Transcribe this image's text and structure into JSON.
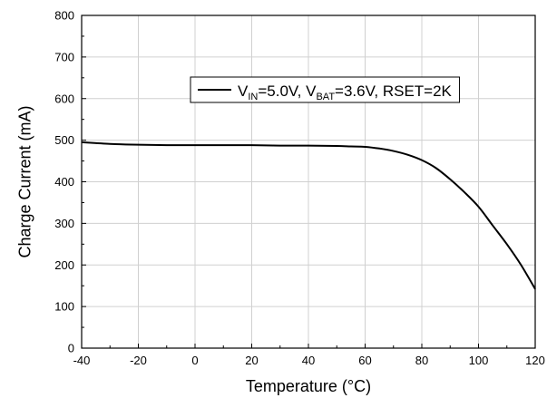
{
  "chart_data": {
    "type": "line",
    "xlabel": "Temperature (°C)",
    "ylabel": "Charge Current (mA)",
    "xlim": [
      -40,
      120
    ],
    "ylim": [
      0,
      800
    ],
    "xticks": [
      -40,
      -20,
      0,
      20,
      40,
      60,
      80,
      100,
      120
    ],
    "yticks": [
      0,
      100,
      200,
      300,
      400,
      500,
      600,
      700,
      800
    ],
    "grid": true,
    "legend_position": "top-right",
    "series": [
      {
        "name": "VIN=5.0V, VBAT=3.6V, RSET=2K",
        "legend": {
          "parts": [
            {
              "text": "V",
              "sub": false
            },
            {
              "text": "IN",
              "sub": true
            },
            {
              "text": "=5.0V, V",
              "sub": false
            },
            {
              "text": "BAT",
              "sub": true
            },
            {
              "text": "=3.6V, RSET=2K",
              "sub": false
            }
          ]
        },
        "color": "#000000",
        "x": [
          -40,
          -30,
          -20,
          -10,
          0,
          10,
          20,
          30,
          40,
          50,
          55,
          60,
          65,
          70,
          75,
          80,
          85,
          90,
          95,
          100,
          105,
          110,
          115,
          120
        ],
        "y": [
          495,
          491,
          489,
          488,
          488,
          488,
          488,
          487,
          487,
          486,
          485,
          484,
          480,
          474,
          465,
          452,
          433,
          406,
          375,
          340,
          295,
          250,
          200,
          142
        ]
      }
    ]
  }
}
